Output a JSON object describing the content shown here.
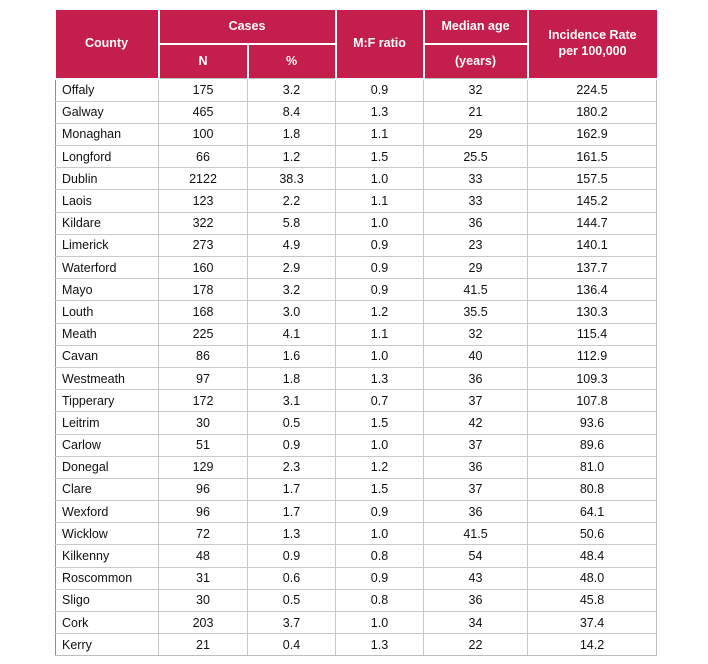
{
  "accent_color": "#c41e4c",
  "table": {
    "header": {
      "county": "County",
      "cases": "Cases",
      "n": "N",
      "pct": "%",
      "mf_ratio": "M:F ratio",
      "median_age": "Median age",
      "median_age_unit": "(years)",
      "incidence_line1": "Incidence Rate",
      "incidence_line2": "per 100,000"
    },
    "column_keys": [
      "county",
      "cases-n",
      "cases-pct",
      "mf-ratio",
      "median-age",
      "incidence-rate"
    ],
    "rows": [
      [
        "Offaly",
        "175",
        "3.2",
        "0.9",
        "32",
        "224.5"
      ],
      [
        "Galway",
        "465",
        "8.4",
        "1.3",
        "21",
        "180.2"
      ],
      [
        "Monaghan",
        "100",
        "1.8",
        "1.1",
        "29",
        "162.9"
      ],
      [
        "Longford",
        "66",
        "1.2",
        "1.5",
        "25.5",
        "161.5"
      ],
      [
        "Dublin",
        "2122",
        "38.3",
        "1.0",
        "33",
        "157.5"
      ],
      [
        "Laois",
        "123",
        "2.2",
        "1.1",
        "33",
        "145.2"
      ],
      [
        "Kildare",
        "322",
        "5.8",
        "1.0",
        "36",
        "144.7"
      ],
      [
        "Limerick",
        "273",
        "4.9",
        "0.9",
        "23",
        "140.1"
      ],
      [
        "Waterford",
        "160",
        "2.9",
        "0.9",
        "29",
        "137.7"
      ],
      [
        "Mayo",
        "178",
        "3.2",
        "0.9",
        "41.5",
        "136.4"
      ],
      [
        "Louth",
        "168",
        "3.0",
        "1.2",
        "35.5",
        "130.3"
      ],
      [
        "Meath",
        "225",
        "4.1",
        "1.1",
        "32",
        "115.4"
      ],
      [
        "Cavan",
        "86",
        "1.6",
        "1.0",
        "40",
        "112.9"
      ],
      [
        "Westmeath",
        "97",
        "1.8",
        "1.3",
        "36",
        "109.3"
      ],
      [
        "Tipperary",
        "172",
        "3.1",
        "0.7",
        "37",
        "107.8"
      ],
      [
        "Leitrim",
        "30",
        "0.5",
        "1.5",
        "42",
        "93.6"
      ],
      [
        "Carlow",
        "51",
        "0.9",
        "1.0",
        "37",
        "89.6"
      ],
      [
        "Donegal",
        "129",
        "2.3",
        "1.2",
        "36",
        "81.0"
      ],
      [
        "Clare",
        "96",
        "1.7",
        "1.5",
        "37",
        "80.8"
      ],
      [
        "Wexford",
        "96",
        "1.7",
        "0.9",
        "36",
        "64.1"
      ],
      [
        "Wicklow",
        "72",
        "1.3",
        "1.0",
        "41.5",
        "50.6"
      ],
      [
        "Kilkenny",
        "48",
        "0.9",
        "0.8",
        "54",
        "48.4"
      ],
      [
        "Roscommon",
        "31",
        "0.6",
        "0.9",
        "43",
        "48.0"
      ],
      [
        "Sligo",
        "30",
        "0.5",
        "0.8",
        "36",
        "45.8"
      ],
      [
        "Cork",
        "203",
        "3.7",
        "1.0",
        "34",
        "37.4"
      ],
      [
        "Kerry",
        "21",
        "0.4",
        "1.3",
        "22",
        "14.2"
      ]
    ]
  }
}
